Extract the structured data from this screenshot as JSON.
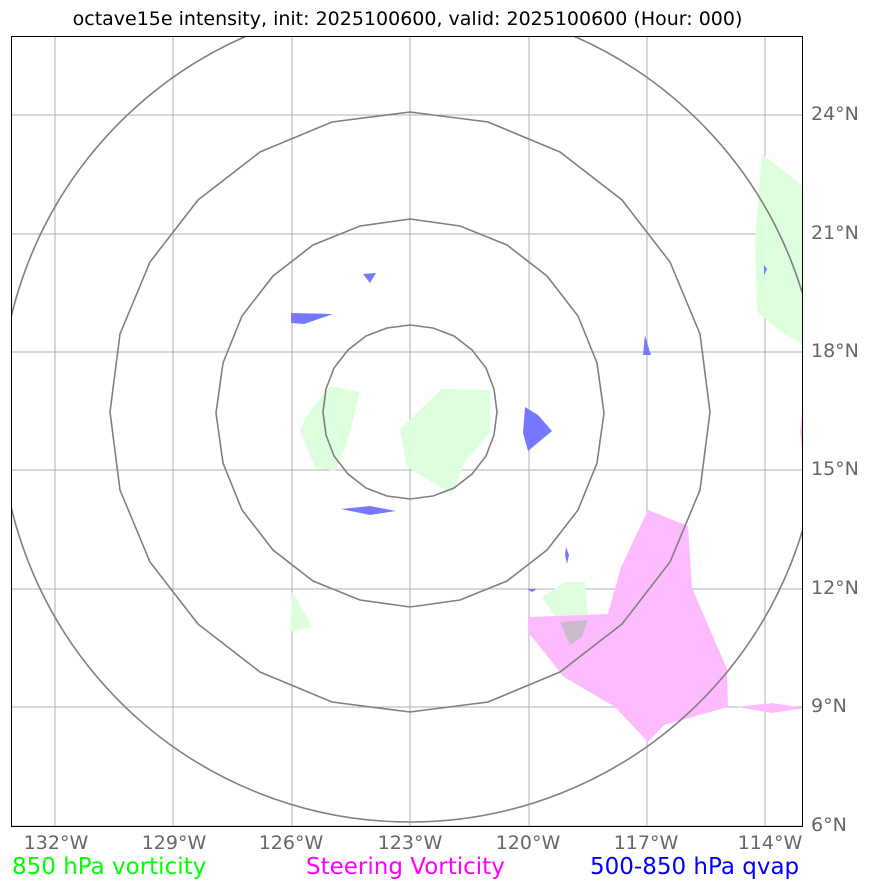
{
  "title": "octave15e intensity, init: 2025100600, valid: 2025100600 (Hour: 000)",
  "lat_labels": [
    "24°N",
    "21°N",
    "18°N",
    "15°N",
    "12°N",
    "9°N",
    "6°N"
  ],
  "lon_labels": [
    "132°W",
    "129°W",
    "126°W",
    "123°W",
    "120°W",
    "117°W",
    "114°W"
  ],
  "legend": {
    "vort850": {
      "label": "850 hPa vorticity",
      "color": "#00ff00"
    },
    "steering": {
      "label": "Steering Vorticity",
      "color": "#ff00ff"
    },
    "qvap": {
      "label": "500-850 hPa qvap",
      "color": "#0000ff"
    }
  },
  "colors": {
    "vort850_fill": "#ddffdd",
    "steering_fill": "#ffbbff",
    "qvap_fill": "#7777ff",
    "rings": "#808080",
    "grid": "#b0b0b0"
  }
}
